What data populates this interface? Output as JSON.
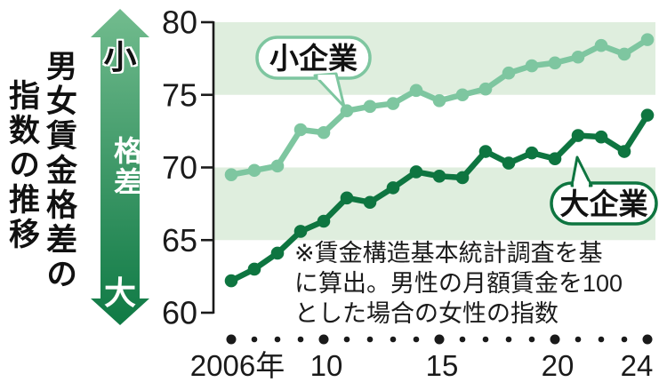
{
  "title": {
    "line1": "男女賃金格差の",
    "line2": "指数の推移"
  },
  "gap_arrow": {
    "top_label": "小",
    "mid_label": "格差",
    "bottom_label": "大"
  },
  "note": {
    "lines": [
      "※賃金構造基本統計調査を基",
      "に算出。男性の月額賃金を100",
      "とした場合の女性の指数"
    ]
  },
  "colors": {
    "small_series": "#7ec6a0",
    "large_series": "#0e7540",
    "band": "#dfeede",
    "axis": "#1a1a1a",
    "arrow_top": "#72bc8e",
    "arrow_mid": "#449c6c",
    "arrow_bottom": "#0f7a45"
  },
  "chart_data": {
    "type": "line",
    "x": [
      2006,
      2007,
      2008,
      2009,
      2010,
      2011,
      2012,
      2013,
      2014,
      2015,
      2016,
      2017,
      2018,
      2019,
      2020,
      2021,
      2022,
      2023,
      2024
    ],
    "x_ticks": [
      {
        "index": 0,
        "label": "2006年"
      },
      {
        "index": 4,
        "label": "10"
      },
      {
        "index": 9,
        "label": "15"
      },
      {
        "index": 14,
        "label": "20"
      },
      {
        "index": 18,
        "label": "24"
      }
    ],
    "series": [
      {
        "name": "小企業",
        "color_key": "small_series",
        "values": [
          69.5,
          69.8,
          70.1,
          72.6,
          72.4,
          73.9,
          74.2,
          74.4,
          75.3,
          74.6,
          75.0,
          75.4,
          76.5,
          77.0,
          77.2,
          77.6,
          78.4,
          77.8,
          78.8
        ]
      },
      {
        "name": "大企業",
        "color_key": "large_series",
        "values": [
          62.2,
          63.0,
          64.1,
          65.6,
          66.3,
          67.9,
          67.6,
          68.6,
          69.7,
          69.4,
          69.3,
          71.1,
          70.3,
          71.0,
          70.6,
          72.2,
          72.1,
          71.1,
          73.6
        ]
      }
    ],
    "ylim": [
      60,
      80
    ],
    "yticks": [
      80,
      75,
      70,
      65,
      60
    ],
    "bands": [
      [
        75,
        80
      ],
      [
        65,
        70
      ]
    ],
    "grid": false,
    "legend_position": "annotation-bubbles"
  }
}
